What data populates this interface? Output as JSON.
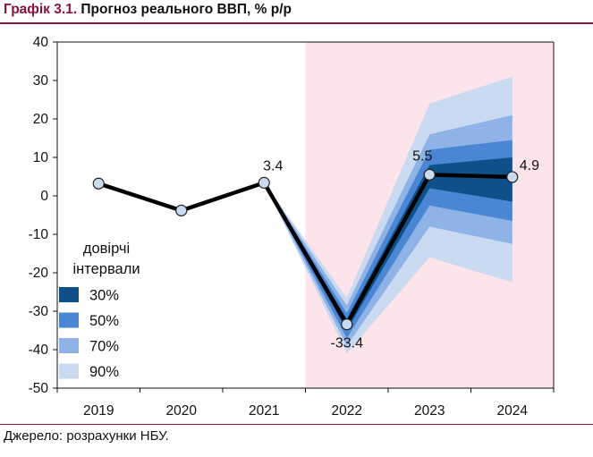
{
  "header": {
    "figure_number": "Графік 3.1.",
    "title": "Прогноз реального ВВП, % р/р"
  },
  "footer": {
    "source": "Джерело: розрахунки НБУ."
  },
  "chart_data": {
    "type": "line",
    "title": "Прогноз реального ВВП, % р/р",
    "categories": [
      "2019",
      "2020",
      "2021",
      "2022",
      "2023",
      "2024"
    ],
    "ylim": [
      -50,
      40
    ],
    "yticks": [
      40,
      30,
      20,
      10,
      0,
      -10,
      -20,
      -30,
      -40,
      -50
    ],
    "grid": false,
    "forecast_shading": {
      "from": "2022",
      "to": "2024",
      "color": "#fde3ea"
    },
    "series": [
      {
        "values": [
          3.2,
          -3.8,
          3.4,
          -33.4,
          5.5,
          4.9
        ],
        "color": "#000000"
      }
    ],
    "data_labels": [
      {
        "category": "2021",
        "text": "3.4"
      },
      {
        "category": "2022",
        "text": "-33.4"
      },
      {
        "category": "2023",
        "text": "5.5"
      },
      {
        "category": "2024",
        "text": "4.9"
      }
    ],
    "fan": {
      "start": "2021",
      "categories": [
        "2022",
        "2023",
        "2024"
      ],
      "bands": [
        {
          "level": "90%",
          "color": "#c9daf1",
          "lower": [
            -41.0,
            -16.0,
            -22.5
          ],
          "upper": [
            -26.5,
            24.0,
            31.0
          ]
        },
        {
          "level": "70%",
          "color": "#8fb3e6",
          "lower": [
            -39.0,
            -8.0,
            -12.5
          ],
          "upper": [
            -28.5,
            16.0,
            21.0
          ]
        },
        {
          "level": "50%",
          "color": "#4a86d4",
          "lower": [
            -37.0,
            -2.5,
            -6.5
          ],
          "upper": [
            -30.5,
            12.0,
            14.5
          ]
        },
        {
          "level": "30%",
          "color": "#0f4f8a",
          "lower": [
            -35.0,
            2.0,
            -1.5
          ],
          "upper": [
            -32.0,
            8.0,
            10.0
          ]
        }
      ]
    },
    "legend": {
      "title_line1": "довірчі",
      "title_line2": "інтервали",
      "placement": "bottom-left",
      "items": [
        {
          "label": "30%",
          "color": "#0f4f8a"
        },
        {
          "label": "50%",
          "color": "#4a86d4"
        },
        {
          "label": "70%",
          "color": "#8fb3e6"
        },
        {
          "label": "90%",
          "color": "#c9daf1"
        }
      ]
    }
  }
}
